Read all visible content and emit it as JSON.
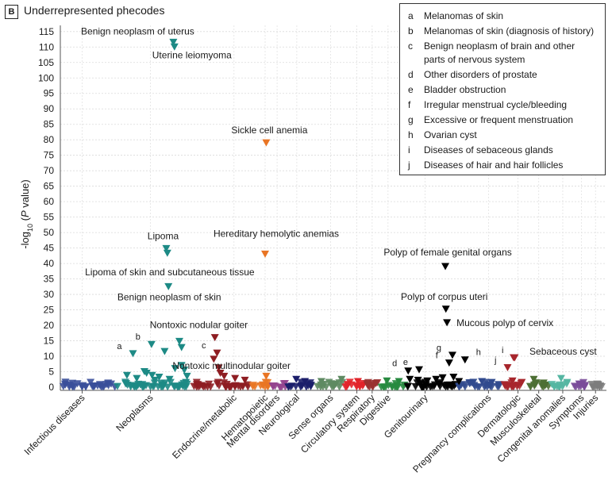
{
  "panel": {
    "label": "B",
    "title": "Underrepresented phecodes"
  },
  "chart_data": {
    "type": "scatter",
    "title": "Underrepresented phecodes",
    "ylabel_prefix": "-log",
    "ylabel_sub": "10",
    "ylabel_suffix": " (",
    "ylabel_italic": "P",
    "ylabel_end": " value)",
    "ylim": [
      0,
      117
    ],
    "yticks": [
      0,
      5,
      10,
      15,
      20,
      25,
      30,
      35,
      40,
      45,
      50,
      55,
      60,
      65,
      70,
      75,
      80,
      85,
      90,
      95,
      100,
      105,
      110,
      115
    ],
    "x_range": [
      0,
      1000
    ],
    "grid": true,
    "marker": "down-triangle",
    "categories": [
      {
        "name": "Infectious diseases",
        "x": 40,
        "color": "#3a4f9a"
      },
      {
        "name": "Neoplasms",
        "x": 165,
        "color": "#1d8a85"
      },
      {
        "name": "Endocrine/metabolic",
        "x": 318,
        "color": "#8e1d22"
      },
      {
        "name": "Hematopoietic",
        "x": 375,
        "color": "#e97524"
      },
      {
        "name": "Mental disorders",
        "x": 397,
        "color": "#93458f"
      },
      {
        "name": "Neurological",
        "x": 433,
        "color": "#1b1e6a"
      },
      {
        "name": "Sense organs",
        "x": 495,
        "color": "#5e8a62"
      },
      {
        "name": "Circulatory system",
        "x": 543,
        "color": "#e2252b"
      },
      {
        "name": "Respiratory",
        "x": 571,
        "color": "#9a3231"
      },
      {
        "name": "Digestive",
        "x": 600,
        "color": "#27893f"
      },
      {
        "name": "Genitourinary",
        "x": 668,
        "color": "#000000"
      },
      {
        "name": "Pregnancy complications",
        "x": 784,
        "color": "#314a8e"
      },
      {
        "name": "Dermatologic",
        "x": 838,
        "color": "#a7262c"
      },
      {
        "name": "Musculoskeletal",
        "x": 876,
        "color": "#4d6f34"
      },
      {
        "name": "Congenital anomalies",
        "x": 920,
        "color": "#55b6a2"
      },
      {
        "name": "Symptoms",
        "x": 954,
        "color": "#7a4b99"
      },
      {
        "name": "Injuries",
        "x": 980,
        "color": "#7c7c7c"
      }
    ],
    "highlighted_points": [
      {
        "cat": "Neoplasms",
        "x": 207,
        "y": 111.5,
        "label": "Benign neoplasm of uterus"
      },
      {
        "cat": "Neoplasms",
        "x": 209,
        "y": 110,
        "label": "Uterine leiomyoma"
      },
      {
        "cat": "Hematopoietic",
        "x": 377,
        "y": 79,
        "label": "Sickle cell anemia"
      },
      {
        "cat": "Neoplasms",
        "x": 194,
        "y": 44.8,
        "label": "Lipoma"
      },
      {
        "cat": "Neoplasms",
        "x": 196,
        "y": 43.3,
        "label": "Lipoma of skin and subcutaneous tissue"
      },
      {
        "cat": "Hematopoietic",
        "x": 375,
        "y": 43,
        "label": "Hereditary hemolytic anemias"
      },
      {
        "cat": "Genitourinary",
        "x": 705,
        "y": 39,
        "label": "Polyp of female genital organs"
      },
      {
        "cat": "Neoplasms",
        "x": 198,
        "y": 32.5,
        "label": "Benign neoplasm of skin"
      },
      {
        "cat": "Genitourinary",
        "x": 706,
        "y": 25.2,
        "label": "Polyp of corpus uteri"
      },
      {
        "cat": "Genitourinary",
        "x": 708,
        "y": 20.8,
        "label": "Mucous polyp of cervix"
      },
      {
        "cat": "Endocrine/metabolic",
        "x": 283,
        "y": 16,
        "label": "Nontoxic nodular goiter"
      },
      {
        "cat": "Endocrine/metabolic",
        "x": 281,
        "y": 9,
        "label": "Nontoxic multinodular goiter"
      },
      {
        "cat": "Dermatologic",
        "x": 830,
        "y": 9.5,
        "label": "Sebaceous cyst"
      }
    ],
    "lettered_points": [
      {
        "letter": "a",
        "cat": "Neoplasms",
        "x": 133,
        "y": 10.8
      },
      {
        "letter": "b",
        "cat": "Neoplasms",
        "x": 167,
        "y": 13.8
      },
      {
        "letter": "c",
        "cat": "Endocrine/metabolic",
        "x": 287,
        "y": 11
      },
      {
        "letter": "d",
        "cat": "Genitourinary",
        "x": 637,
        "y": 5.2
      },
      {
        "letter": "e",
        "cat": "Genitourinary",
        "x": 657,
        "y": 5.6
      },
      {
        "letter": "f",
        "cat": "Genitourinary",
        "x": 712,
        "y": 7.8
      },
      {
        "letter": "g",
        "cat": "Genitourinary",
        "x": 718,
        "y": 10.3
      },
      {
        "letter": "h",
        "cat": "Genitourinary",
        "x": 741,
        "y": 8.8
      },
      {
        "letter": "i",
        "cat": "Dermatologic",
        "x": 832,
        "y": 9.5
      },
      {
        "letter": "j",
        "cat": "Dermatologic",
        "x": 819,
        "y": 6.3
      }
    ],
    "other_points": [
      {
        "cat": "Neoplasms",
        "x": 218,
        "y": 14.8
      },
      {
        "cat": "Neoplasms",
        "x": 222,
        "y": 12.8
      },
      {
        "cat": "Neoplasms",
        "x": 191,
        "y": 11.5
      },
      {
        "cat": "Neoplasms",
        "x": 222,
        "y": 7
      },
      {
        "cat": "Neoplasms",
        "x": 210,
        "y": 6
      },
      {
        "cat": "Neoplasms",
        "x": 227,
        "y": 5.5
      },
      {
        "cat": "Neoplasms",
        "x": 154,
        "y": 5
      },
      {
        "cat": "Neoplasms",
        "x": 158,
        "y": 4.5
      },
      {
        "cat": "Neoplasms",
        "x": 122,
        "y": 3.8
      },
      {
        "cat": "Neoplasms",
        "x": 168,
        "y": 3.8
      },
      {
        "cat": "Neoplasms",
        "x": 181,
        "y": 3.2
      },
      {
        "cat": "Neoplasms",
        "x": 200,
        "y": 2.5
      },
      {
        "cat": "Neoplasms",
        "x": 232,
        "y": 3.5
      },
      {
        "cat": "Neoplasms",
        "x": 140,
        "y": 2.8
      },
      {
        "cat": "Neoplasms",
        "x": 173,
        "y": 2.2
      },
      {
        "cat": "Neoplasms",
        "x": 230,
        "y": 1.5
      },
      {
        "cat": "Endocrine/metabolic",
        "x": 290,
        "y": 6.2
      },
      {
        "cat": "Endocrine/metabolic",
        "x": 293,
        "y": 4.5
      },
      {
        "cat": "Endocrine/metabolic",
        "x": 300,
        "y": 3.5
      },
      {
        "cat": "Endocrine/metabolic",
        "x": 320,
        "y": 2.8
      },
      {
        "cat": "Endocrine/metabolic",
        "x": 338,
        "y": 2.2
      },
      {
        "cat": "Hematopoietic",
        "x": 377,
        "y": 3.5
      },
      {
        "cat": "Neurological",
        "x": 432,
        "y": 2.5
      },
      {
        "cat": "Neurological",
        "x": 448,
        "y": 1.8
      },
      {
        "cat": "Sense organs",
        "x": 515,
        "y": 2.5
      },
      {
        "cat": "Sense organs",
        "x": 478,
        "y": 1.8
      },
      {
        "cat": "Circulatory system",
        "x": 545,
        "y": 1.8
      },
      {
        "cat": "Respiratory",
        "x": 578,
        "y": 1.2
      },
      {
        "cat": "Digestive",
        "x": 598,
        "y": 2
      },
      {
        "cat": "Digestive",
        "x": 620,
        "y": 1.8
      },
      {
        "cat": "Genitourinary",
        "x": 640,
        "y": 2.5
      },
      {
        "cat": "Genitourinary",
        "x": 655,
        "y": 2.2
      },
      {
        "cat": "Genitourinary",
        "x": 672,
        "y": 2
      },
      {
        "cat": "Genitourinary",
        "x": 688,
        "y": 2.5
      },
      {
        "cat": "Genitourinary",
        "x": 700,
        "y": 3
      },
      {
        "cat": "Genitourinary",
        "x": 720,
        "y": 3.2
      },
      {
        "cat": "Genitourinary",
        "x": 730,
        "y": 1.8
      },
      {
        "cat": "Pregnancy complications",
        "x": 772,
        "y": 1.8
      },
      {
        "cat": "Pregnancy complications",
        "x": 790,
        "y": 1.5
      },
      {
        "cat": "Dermatologic",
        "x": 828,
        "y": 2
      },
      {
        "cat": "Dermatologic",
        "x": 845,
        "y": 1.5
      },
      {
        "cat": "Musculoskeletal",
        "x": 867,
        "y": 2.5
      },
      {
        "cat": "Musculoskeletal",
        "x": 885,
        "y": 1.3
      },
      {
        "cat": "Congenital anomalies",
        "x": 917,
        "y": 2.8
      },
      {
        "cat": "Congenital anomalies",
        "x": 928,
        "y": 1.5
      },
      {
        "cat": "Symptoms",
        "x": 950,
        "y": 1
      },
      {
        "cat": "Injuries",
        "x": 985,
        "y": 0.8
      }
    ]
  },
  "legend": [
    {
      "letter": "a",
      "text": "Melanomas of skin"
    },
    {
      "letter": "b",
      "text": "Melanomas of skin (diagnosis of history)"
    },
    {
      "letter": "c",
      "text": "Benign neoplasm of brain and other parts of nervous system"
    },
    {
      "letter": "d",
      "text": "Other disorders of prostate"
    },
    {
      "letter": "e",
      "text": "Bladder obstruction"
    },
    {
      "letter": "f",
      "text": "Irregular menstrual cycle/bleeding"
    },
    {
      "letter": "g",
      "text": "Excessive or frequent menstruation"
    },
    {
      "letter": "h",
      "text": "Ovarian cyst"
    },
    {
      "letter": "i",
      "text": "Diseases of sebaceous glands"
    },
    {
      "letter": "j",
      "text": "Diseases of hair and hair follicles"
    }
  ]
}
